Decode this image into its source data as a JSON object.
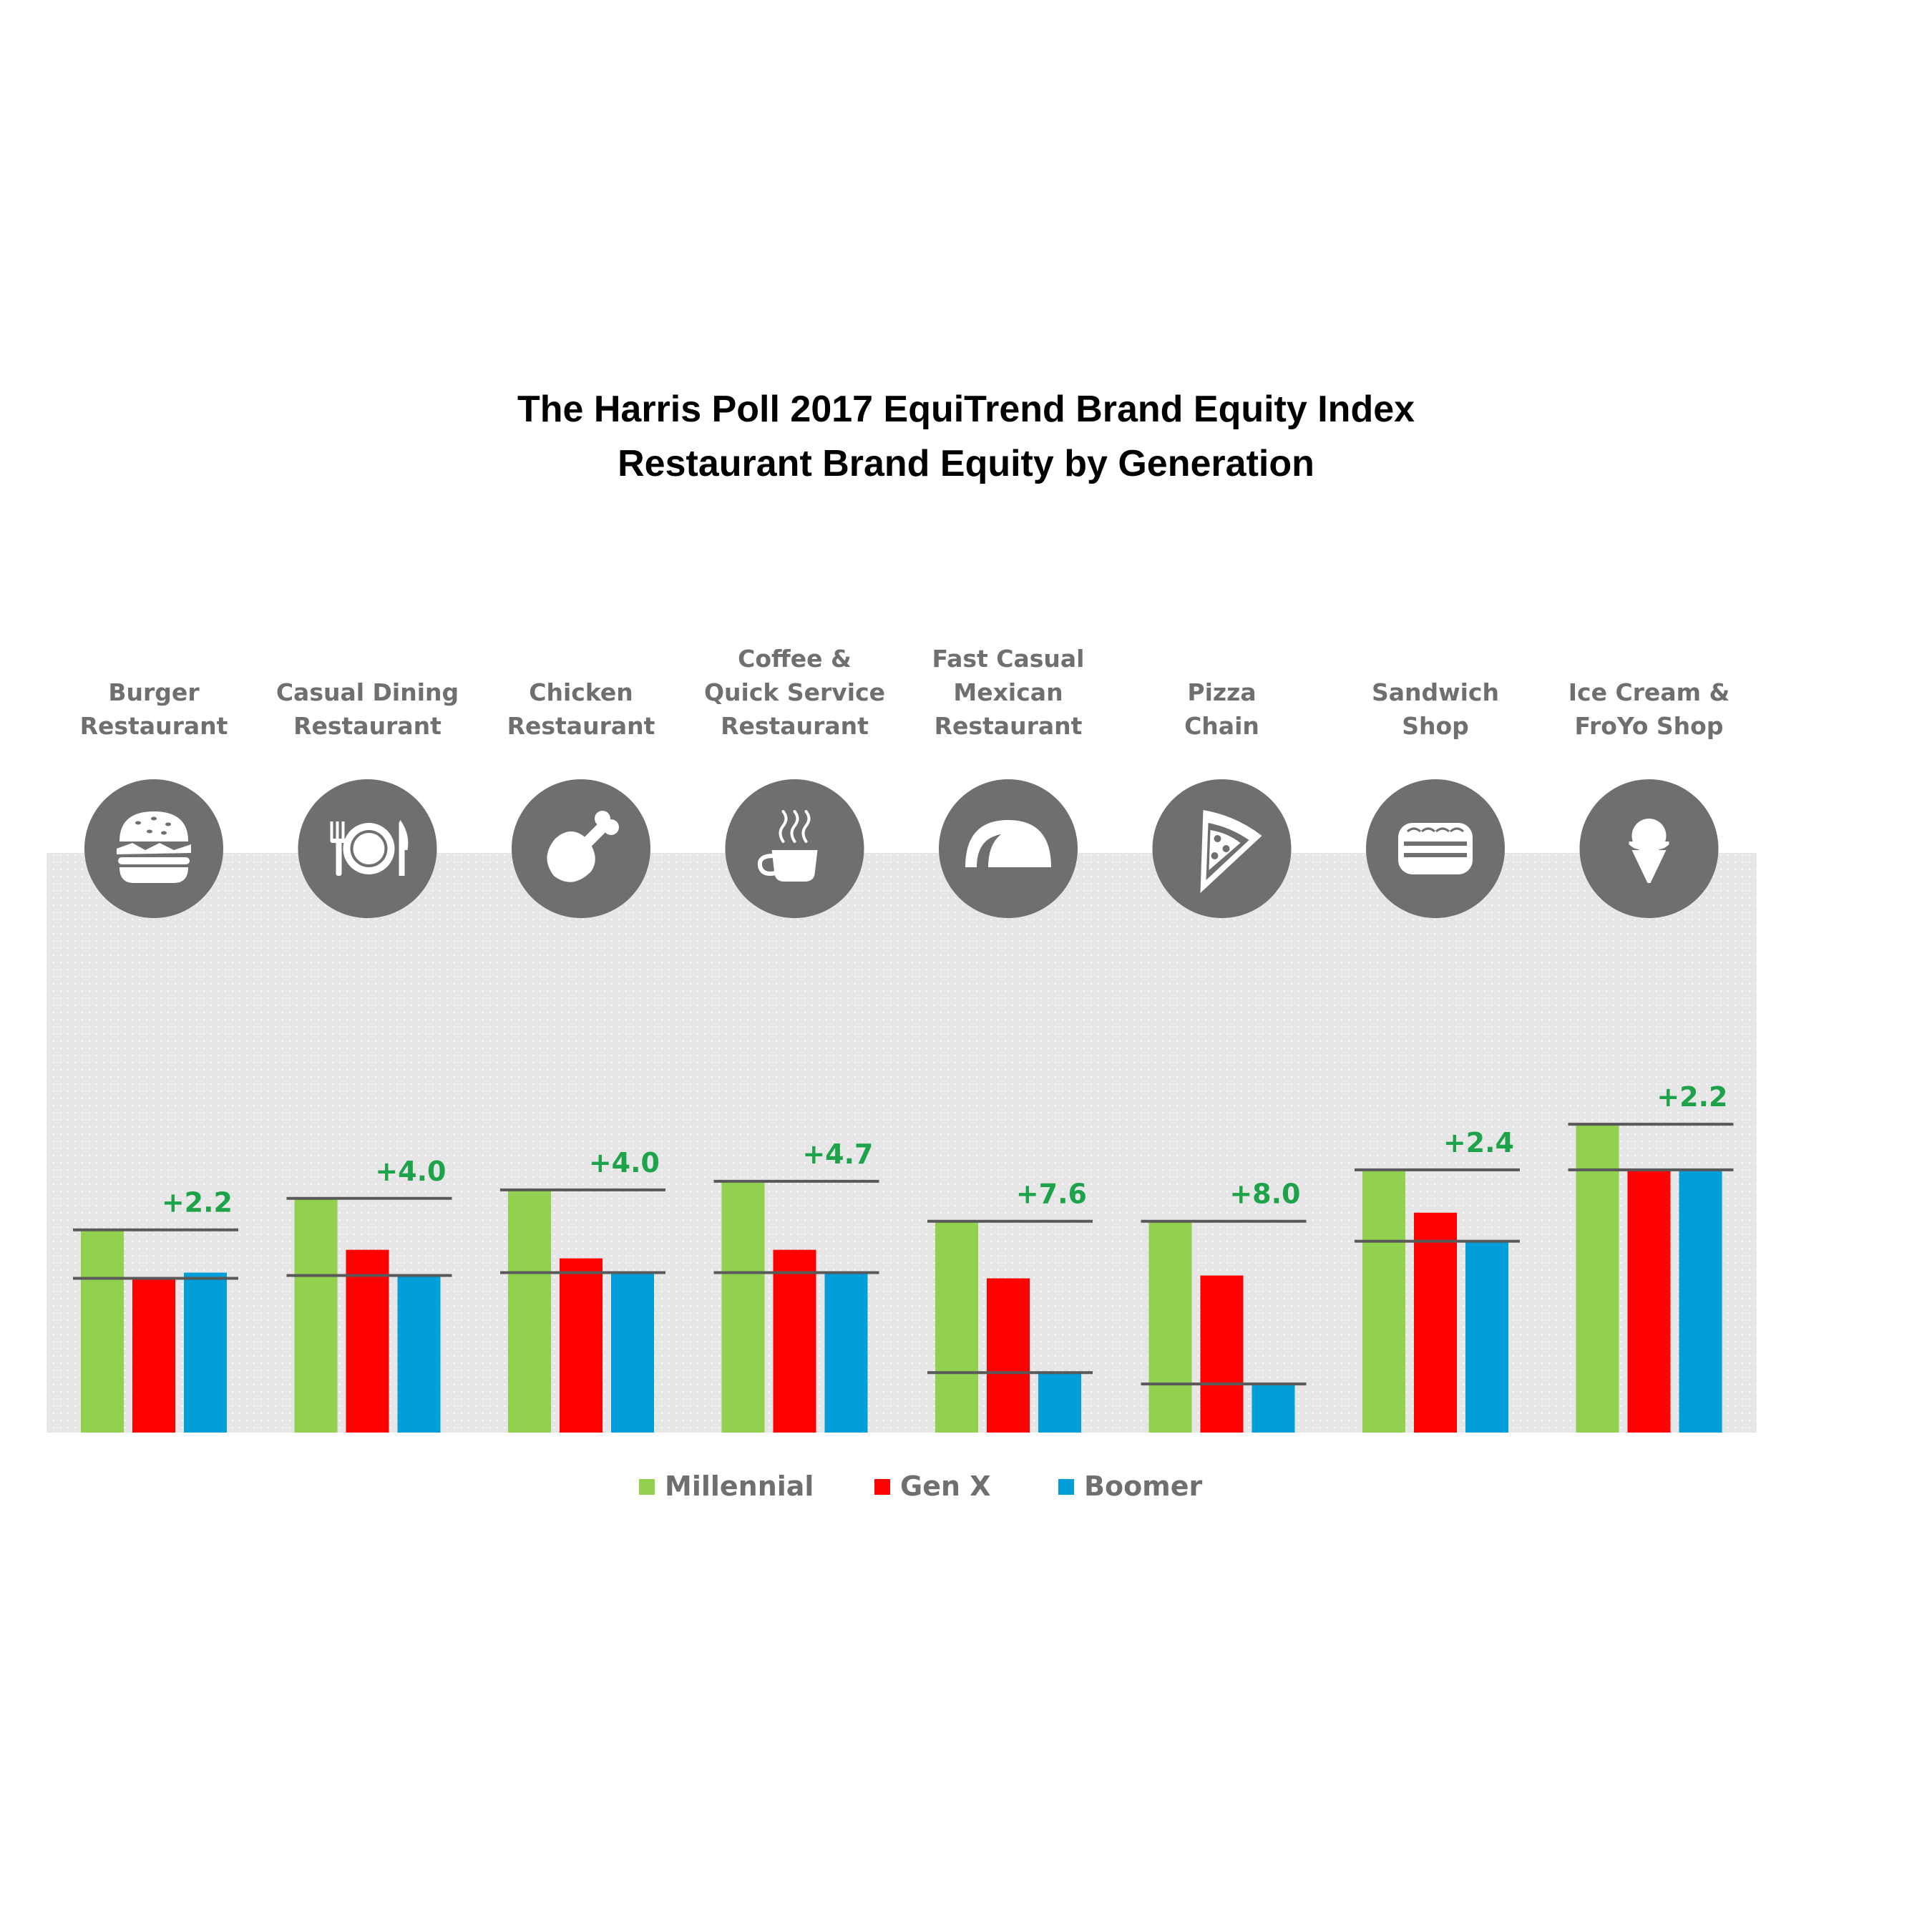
{
  "chart_data": {
    "type": "bar",
    "title": "The Harris Poll 2017 EquiTrend Brand Equity Index",
    "subtitle": "Restaurant Brand Equity by Generation",
    "categories": [
      {
        "label": [
          "Burger",
          "Restaurant"
        ],
        "icon": "burger-icon",
        "difference": "+2.2"
      },
      {
        "label": [
          "Casual Dining",
          "Restaurant"
        ],
        "icon": "plate-cutlery-icon",
        "difference": "+4.0"
      },
      {
        "label": [
          "Chicken",
          "Restaurant"
        ],
        "icon": "chicken-leg-icon",
        "difference": "+4.0"
      },
      {
        "label": [
          "Coffee &",
          "Quick Service",
          "Restaurant"
        ],
        "icon": "coffee-cup-icon",
        "difference": "+4.7"
      },
      {
        "label": [
          "Fast Casual",
          "Mexican",
          "Restaurant"
        ],
        "icon": "taco-icon",
        "difference": "+7.6"
      },
      {
        "label": [
          "Pizza",
          "Chain"
        ],
        "icon": "pizza-slice-icon",
        "difference": "+8.0"
      },
      {
        "label": [
          "Sandwich",
          "Shop"
        ],
        "icon": "sandwich-icon",
        "difference": "+2.4"
      },
      {
        "label": [
          "Ice Cream &",
          "FroYo Shop"
        ],
        "icon": "ice-cream-cone-icon",
        "difference": "+2.2"
      }
    ],
    "series": [
      {
        "name": "Millennial",
        "color": "#92d050",
        "values": [
          54.8,
          55.9,
          56.2,
          56.5,
          55.1,
          55.1,
          56.9,
          58.5
        ]
      },
      {
        "name": "Gen X",
        "color": "#ff0000",
        "values": [
          53.1,
          54.1,
          53.8,
          54.1,
          53.1,
          53.2,
          55.4,
          56.9
        ]
      },
      {
        "name": "Boomer",
        "color": "#009fd9",
        "values": [
          53.3,
          53.2,
          53.3,
          53.3,
          49.8,
          49.4,
          54.4,
          56.9
        ]
      }
    ],
    "ylim": [
      47.7,
      68.0
    ],
    "grid": false,
    "legend_position": "bottom"
  }
}
